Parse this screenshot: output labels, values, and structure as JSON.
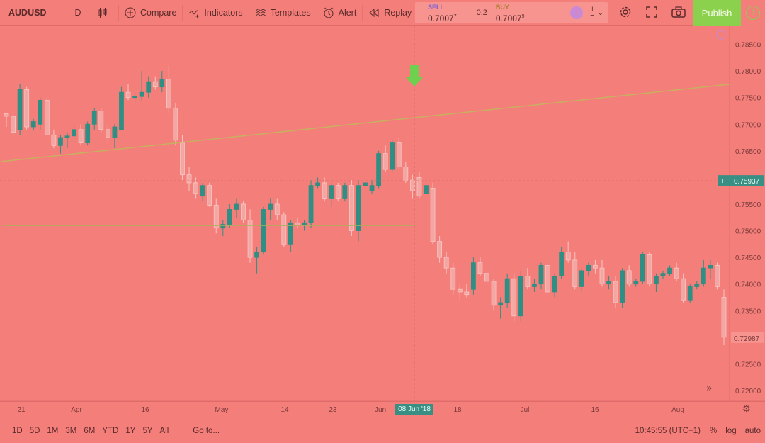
{
  "toolbar": {
    "symbol": "AUDUSD",
    "interval": "D",
    "compare": "Compare",
    "indicators": "Indicators",
    "templates": "Templates",
    "alert": "Alert",
    "replay": "Replay",
    "publish": "Publish"
  },
  "trade": {
    "sell_label": "SELL",
    "sell_price": "0.7007",
    "sell_sup": "7",
    "spread": "0.2",
    "buy_label": "BUY",
    "buy_price": "0.7007",
    "buy_sup": "9"
  },
  "price_scale": [
    "0.78500",
    "0.78000",
    "0.77500",
    "0.77000",
    "0.76500",
    "0.75500",
    "0.75000",
    "0.74500",
    "0.74000",
    "0.73500",
    "0.72500",
    "0.72000"
  ],
  "current_price_label": "0.75937",
  "low_price_label": "0.72987",
  "time_scale": [
    "21",
    "Apr",
    "16",
    "May",
    "14",
    "23",
    "Jun",
    "18",
    "Jul",
    "16",
    "Aug"
  ],
  "crosshair_date": "08 Jun '18",
  "bottom": {
    "timeframes": [
      "1D",
      "5D",
      "1M",
      "3M",
      "6M",
      "YTD",
      "1Y",
      "5Y",
      "All"
    ],
    "goto": "Go to...",
    "clock": "10:45:55 (UTC+1)",
    "percent": "%",
    "log": "log",
    "auto": "auto"
  },
  "colors": {
    "background": "#f47e7a",
    "up_candle": "#2f8f84",
    "down_candle": "#f4a6a2",
    "trendline": "#c8b060",
    "hline": "#a7b45a",
    "arrow": "#6fcf4f",
    "publish": "#8bd14e"
  },
  "chart_data": {
    "type": "candlestick",
    "symbol": "AUDUSD",
    "interval": "D",
    "ylim": [
      0.718,
      0.788
    ],
    "candles": [
      [
        0.772,
        0.7722,
        0.7695,
        0.7715
      ],
      [
        0.7715,
        0.7725,
        0.7675,
        0.7685
      ],
      [
        0.769,
        0.7775,
        0.768,
        0.7765
      ],
      [
        0.7765,
        0.777,
        0.769,
        0.7695
      ],
      [
        0.7695,
        0.771,
        0.7688,
        0.7705
      ],
      [
        0.77,
        0.775,
        0.769,
        0.7745
      ],
      [
        0.7745,
        0.775,
        0.768,
        0.768
      ],
      [
        0.768,
        0.769,
        0.7655,
        0.766
      ],
      [
        0.766,
        0.768,
        0.7645,
        0.7675
      ],
      [
        0.7675,
        0.7685,
        0.7655,
        0.7678
      ],
      [
        0.7678,
        0.77,
        0.7665,
        0.769
      ],
      [
        0.769,
        0.77,
        0.766,
        0.7665
      ],
      [
        0.7665,
        0.7705,
        0.766,
        0.77
      ],
      [
        0.77,
        0.773,
        0.769,
        0.7725
      ],
      [
        0.7725,
        0.773,
        0.7685,
        0.769
      ],
      [
        0.769,
        0.77,
        0.7665,
        0.7675
      ],
      [
        0.7675,
        0.77,
        0.7655,
        0.7695
      ],
      [
        0.769,
        0.777,
        0.769,
        0.776
      ],
      [
        0.776,
        0.7775,
        0.7745,
        0.775
      ],
      [
        0.775,
        0.776,
        0.774,
        0.7752
      ],
      [
        0.7752,
        0.78,
        0.7745,
        0.776
      ],
      [
        0.776,
        0.779,
        0.775,
        0.778
      ],
      [
        0.778,
        0.779,
        0.7765,
        0.777
      ],
      [
        0.777,
        0.78,
        0.776,
        0.7785
      ],
      [
        0.7785,
        0.781,
        0.772,
        0.773
      ],
      [
        0.773,
        0.774,
        0.766,
        0.767
      ],
      [
        0.7665,
        0.768,
        0.7595,
        0.7605
      ],
      [
        0.7605,
        0.762,
        0.7575,
        0.759
      ],
      [
        0.759,
        0.76,
        0.756,
        0.757
      ],
      [
        0.7565,
        0.759,
        0.7555,
        0.7585
      ],
      [
        0.7585,
        0.759,
        0.7545,
        0.7548
      ],
      [
        0.7548,
        0.756,
        0.7495,
        0.7505
      ],
      [
        0.7505,
        0.752,
        0.749,
        0.7512
      ],
      [
        0.7512,
        0.755,
        0.7505,
        0.754
      ],
      [
        0.754,
        0.756,
        0.7525,
        0.755
      ],
      [
        0.755,
        0.7555,
        0.7515,
        0.752
      ],
      [
        0.752,
        0.754,
        0.744,
        0.745
      ],
      [
        0.745,
        0.747,
        0.742,
        0.746
      ],
      [
        0.746,
        0.7545,
        0.7455,
        0.754
      ],
      [
        0.754,
        0.756,
        0.752,
        0.755
      ],
      [
        0.755,
        0.756,
        0.752,
        0.753
      ],
      [
        0.753,
        0.7535,
        0.747,
        0.7475
      ],
      [
        0.7475,
        0.752,
        0.746,
        0.7515
      ],
      [
        0.7515,
        0.7525,
        0.7505,
        0.751
      ],
      [
        0.751,
        0.752,
        0.75,
        0.7515
      ],
      [
        0.7515,
        0.7595,
        0.7505,
        0.7585
      ],
      [
        0.7585,
        0.76,
        0.758,
        0.759
      ],
      [
        0.759,
        0.76,
        0.7555,
        0.756
      ],
      [
        0.756,
        0.759,
        0.7545,
        0.7585
      ],
      [
        0.7585,
        0.759,
        0.7555,
        0.756
      ],
      [
        0.756,
        0.759,
        0.7555,
        0.7585
      ],
      [
        0.7585,
        0.7595,
        0.749,
        0.75
      ],
      [
        0.75,
        0.7595,
        0.748,
        0.7585
      ],
      [
        0.7585,
        0.76,
        0.757,
        0.759
      ],
      [
        0.7575,
        0.7595,
        0.757,
        0.7585
      ],
      [
        0.7585,
        0.765,
        0.758,
        0.7645
      ],
      [
        0.7645,
        0.766,
        0.761,
        0.7615
      ],
      [
        0.7615,
        0.767,
        0.761,
        0.7665
      ],
      [
        0.7665,
        0.7675,
        0.7615,
        0.762
      ],
      [
        0.762,
        0.763,
        0.759,
        0.7595
      ],
      [
        0.7595,
        0.7605,
        0.756,
        0.7575
      ],
      [
        0.76,
        0.761,
        0.756,
        0.7565
      ],
      [
        0.757,
        0.759,
        0.755,
        0.7585
      ],
      [
        0.758,
        0.759,
        0.7475,
        0.748
      ],
      [
        0.748,
        0.749,
        0.744,
        0.745
      ],
      [
        0.745,
        0.746,
        0.742,
        0.743
      ],
      [
        0.743,
        0.744,
        0.738,
        0.739
      ],
      [
        0.739,
        0.74,
        0.737,
        0.7385
      ],
      [
        0.7385,
        0.74,
        0.7375,
        0.738
      ],
      [
        0.739,
        0.745,
        0.738,
        0.744
      ],
      [
        0.744,
        0.745,
        0.7415,
        0.742
      ],
      [
        0.742,
        0.743,
        0.7395,
        0.7405
      ],
      [
        0.7405,
        0.741,
        0.735,
        0.736
      ],
      [
        0.736,
        0.7375,
        0.7335,
        0.7365
      ],
      [
        0.7365,
        0.742,
        0.7355,
        0.741
      ],
      [
        0.741,
        0.742,
        0.733,
        0.734
      ],
      [
        0.734,
        0.7425,
        0.733,
        0.7415
      ],
      [
        0.7415,
        0.743,
        0.739,
        0.7395
      ],
      [
        0.7395,
        0.741,
        0.7385,
        0.74
      ],
      [
        0.74,
        0.744,
        0.739,
        0.7435
      ],
      [
        0.7435,
        0.7445,
        0.738,
        0.7385
      ],
      [
        0.7385,
        0.742,
        0.7375,
        0.7415
      ],
      [
        0.7415,
        0.747,
        0.741,
        0.746
      ],
      [
        0.746,
        0.748,
        0.744,
        0.7445
      ],
      [
        0.7445,
        0.746,
        0.739,
        0.7395
      ],
      [
        0.7395,
        0.743,
        0.7385,
        0.7425
      ],
      [
        0.7425,
        0.744,
        0.7415,
        0.7435
      ],
      [
        0.7435,
        0.7445,
        0.742,
        0.743
      ],
      [
        0.743,
        0.7445,
        0.7395,
        0.74
      ],
      [
        0.74,
        0.7415,
        0.739,
        0.7405
      ],
      [
        0.7405,
        0.7415,
        0.7355,
        0.7365
      ],
      [
        0.7365,
        0.743,
        0.7355,
        0.7425
      ],
      [
        0.7425,
        0.7435,
        0.7395,
        0.74
      ],
      [
        0.74,
        0.741,
        0.7395,
        0.7405
      ],
      [
        0.7405,
        0.746,
        0.74,
        0.7455
      ],
      [
        0.7455,
        0.746,
        0.7395,
        0.74
      ],
      [
        0.74,
        0.742,
        0.7385,
        0.7415
      ],
      [
        0.7415,
        0.7425,
        0.741,
        0.742
      ],
      [
        0.742,
        0.7435,
        0.7415,
        0.743
      ],
      [
        0.743,
        0.744,
        0.7405,
        0.741
      ],
      [
        0.741,
        0.742,
        0.7365,
        0.737
      ],
      [
        0.737,
        0.74,
        0.7365,
        0.7395
      ],
      [
        0.7395,
        0.7405,
        0.739,
        0.74
      ],
      [
        0.74,
        0.7445,
        0.7395,
        0.743
      ],
      [
        0.743,
        0.7445,
        0.741,
        0.7435
      ],
      [
        0.7435,
        0.744,
        0.739,
        0.7395
      ],
      [
        0.7375,
        0.739,
        0.7285,
        0.73
      ]
    ],
    "trendline": [
      [
        0.763,
        0.7775
      ]
    ],
    "horizontal_line": 0.751,
    "current_price": 0.75937
  }
}
